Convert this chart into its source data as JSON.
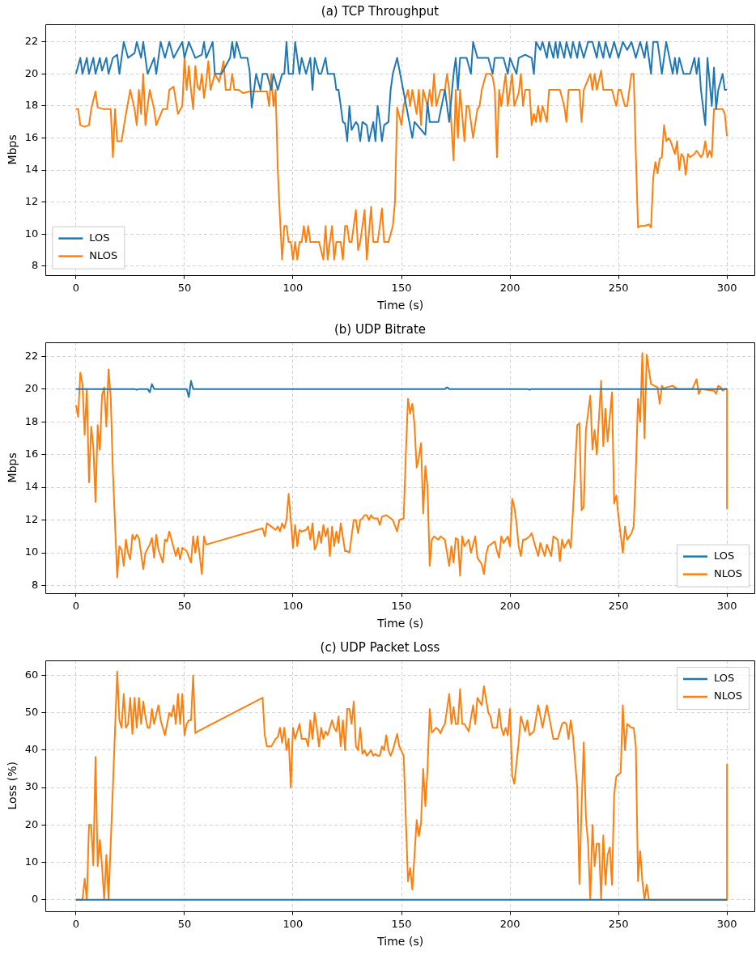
{
  "chart_data": [
    {
      "type": "line",
      "title": "(a) TCP Throughput",
      "xlabel": "Time (s)",
      "ylabel": "Mbps",
      "xlim": [
        -14,
        313
      ],
      "xticks": [
        0,
        50,
        100,
        150,
        200,
        250,
        300
      ],
      "ylim": [
        7.45,
        23.1
      ],
      "yticks": [
        8,
        10,
        12,
        14,
        16,
        18,
        20,
        22
      ],
      "grid": true,
      "legend": "bottom left",
      "series": [
        {
          "name": "LOS",
          "color": "#1f77b4",
          "x": [
            0,
            2,
            3,
            5,
            6,
            8,
            9,
            11,
            12,
            14,
            15,
            17,
            19,
            20,
            22,
            24,
            27,
            28,
            30,
            31,
            33,
            36,
            37,
            39,
            41,
            43,
            45,
            49,
            50,
            52,
            55,
            58,
            59,
            60,
            63,
            64,
            67,
            71,
            72,
            73,
            74,
            76,
            79,
            80,
            81,
            83,
            85,
            86,
            88,
            90,
            91,
            93,
            95,
            96,
            97,
            98,
            100,
            101,
            103,
            104,
            106,
            108,
            109,
            110,
            112,
            113,
            115,
            116,
            119,
            120,
            121,
            123,
            124,
            125,
            126,
            127,
            129,
            130,
            131,
            132,
            134,
            135,
            137,
            138,
            139,
            140,
            141,
            142,
            144,
            145,
            146,
            148,
            155,
            156,
            161,
            162,
            163,
            167,
            170,
            172,
            174,
            175,
            176,
            177,
            180,
            182,
            183,
            185,
            188,
            190,
            192,
            193,
            197,
            199,
            200,
            203,
            204,
            207,
            210,
            211,
            212,
            214,
            215,
            217,
            218,
            220,
            221,
            222,
            223,
            225,
            226,
            228,
            229,
            231,
            232,
            234,
            236,
            238,
            240,
            241,
            243,
            244,
            246,
            248,
            250,
            252,
            254,
            256,
            258,
            260,
            262,
            263,
            265,
            266,
            268,
            270,
            272,
            275,
            276,
            277,
            278,
            280,
            283,
            285,
            286,
            287,
            288,
            290,
            291,
            293,
            294,
            295,
            296,
            298,
            299,
            300
          ],
          "values": [
            20,
            21,
            20,
            21,
            20,
            21,
            20,
            21,
            20.2,
            21,
            20,
            21,
            21.2,
            20,
            22,
            21,
            21.3,
            22,
            21,
            22,
            20,
            21,
            20,
            22,
            21,
            22,
            21,
            22,
            21,
            22,
            21,
            21.2,
            22,
            21,
            22,
            20,
            20,
            21,
            22,
            21,
            22,
            21,
            21,
            20.2,
            17.9,
            20,
            19,
            20,
            20,
            19,
            20,
            19,
            20,
            20,
            22,
            20,
            20,
            22,
            20,
            21,
            20,
            21,
            19,
            21,
            20,
            20,
            21,
            20,
            20,
            19,
            19,
            17,
            16.9,
            15.8,
            18,
            16.5,
            17,
            16.8,
            15.8,
            17,
            16.8,
            15.8,
            17,
            15.8,
            18,
            17,
            15.8,
            16.8,
            17,
            19,
            20,
            21,
            16,
            17,
            16.2,
            18.2,
            17,
            17,
            19,
            17,
            20,
            21,
            19,
            21,
            21,
            20,
            22,
            21,
            21,
            21,
            20,
            21,
            21,
            20,
            21,
            20,
            21,
            21.2,
            21,
            20,
            22,
            21.5,
            22,
            21,
            22,
            21,
            22,
            21,
            22,
            21,
            22,
            21,
            22,
            21,
            22,
            21,
            22,
            22,
            21,
            22,
            21,
            22,
            21,
            22,
            21,
            22,
            21.5,
            22,
            21,
            22,
            21,
            22,
            20,
            22,
            22,
            20,
            22,
            20,
            21,
            20,
            21,
            20,
            20,
            21,
            20,
            21,
            19,
            16.8,
            21,
            18,
            20.4,
            17.8,
            19,
            20,
            19,
            19
          ]
        },
        {
          "name": "NLOS",
          "color": "#ff7f0e",
          "x": [
            0,
            1,
            2,
            4,
            6,
            7,
            9,
            10,
            13,
            16,
            17,
            18,
            19,
            21,
            23,
            25,
            27,
            28,
            29,
            30,
            31,
            32,
            33,
            34,
            36,
            37,
            40,
            42,
            43,
            45,
            47,
            49,
            50,
            51,
            52,
            53,
            54,
            55,
            56,
            57,
            58,
            59,
            60,
            61,
            62,
            64,
            66,
            68,
            69,
            71,
            72,
            73,
            75,
            77,
            80,
            84,
            88,
            89,
            90,
            91,
            92,
            93,
            94,
            95,
            96,
            97,
            98,
            99,
            100,
            101,
            102,
            103,
            104,
            105,
            106,
            107,
            108,
            110,
            112,
            114,
            115,
            116,
            117,
            118,
            119,
            120,
            122,
            123,
            124,
            125,
            126,
            127,
            129,
            130,
            131,
            133,
            134,
            136,
            137,
            139,
            140,
            141,
            142,
            144,
            146,
            147,
            148,
            150,
            151,
            153,
            154,
            155,
            157,
            158,
            159,
            160,
            162,
            163,
            164,
            165,
            166,
            168,
            170,
            171,
            172,
            174,
            175,
            176,
            177,
            179,
            180,
            181,
            183,
            185,
            186,
            187,
            189,
            191,
            192,
            193,
            194,
            195,
            196,
            198,
            199,
            200,
            201,
            202,
            204,
            205,
            206,
            207,
            209,
            210,
            211,
            212,
            213,
            214,
            215,
            217,
            218,
            220,
            223,
            225,
            226,
            227,
            230,
            232,
            233,
            234,
            237,
            238,
            239,
            240,
            242,
            243,
            245,
            247,
            249,
            250,
            251,
            253,
            254,
            256,
            257,
            258,
            259,
            260,
            262,
            264,
            265,
            266,
            267,
            268,
            269,
            270,
            271,
            272,
            273,
            274,
            276,
            277,
            278,
            279,
            280,
            281,
            282,
            283,
            285,
            286,
            288,
            289,
            290,
            291,
            292,
            293,
            294,
            296,
            298,
            299,
            300
          ],
          "values": [
            17.8,
            17.8,
            16.8,
            16.7,
            16.8,
            17.8,
            18.9,
            17.9,
            17.8,
            17.8,
            14.8,
            17.8,
            15.8,
            15.8,
            17.5,
            19,
            17.8,
            16.8,
            19,
            17.5,
            20,
            16.8,
            18,
            19,
            17.8,
            16.8,
            17.8,
            17.8,
            19,
            19.2,
            17.5,
            18,
            21,
            19,
            20.5,
            19,
            17.8,
            20.5,
            19.2,
            19,
            20,
            18.5,
            19.5,
            20.8,
            19,
            20,
            19.5,
            20.8,
            19,
            19,
            20,
            19,
            19,
            18.8,
            18.9,
            18.9,
            18.9,
            18,
            20,
            18,
            19,
            14,
            11,
            8.4,
            10.5,
            10.5,
            9.5,
            9.5,
            8.4,
            9.5,
            8.4,
            9.5,
            9.5,
            10.5,
            9.5,
            10.5,
            9.5,
            9.5,
            9.5,
            8.4,
            10.5,
            8.4,
            9.5,
            10.5,
            8.4,
            9.5,
            9.5,
            8.4,
            10.5,
            10.5,
            9.5,
            9.5,
            11.5,
            9,
            9.5,
            11.5,
            8.4,
            11.7,
            9.5,
            9.5,
            10.5,
            11.6,
            9.5,
            9.5,
            10.5,
            12,
            17.9,
            16.8,
            18,
            19,
            18,
            19,
            17.5,
            19,
            16.8,
            19,
            18,
            19,
            18,
            20,
            18,
            19,
            19,
            20,
            19,
            14.6,
            19,
            16,
            19,
            15.8,
            18,
            18,
            16,
            17.8,
            18,
            19,
            20,
            20,
            19.8,
            19,
            14.8,
            19,
            18,
            20,
            18,
            19,
            20,
            18,
            18.8,
            20,
            18,
            19,
            19,
            16.8,
            17.5,
            17,
            18,
            17,
            18,
            17,
            19,
            19,
            19,
            18,
            17,
            19,
            19,
            19,
            17,
            19,
            20,
            19,
            20,
            19,
            20.2,
            19,
            19,
            19,
            18,
            19,
            19,
            18,
            18,
            20,
            20,
            15,
            10.4,
            10.5,
            10.5,
            10.6,
            10.4,
            13.5,
            14.5,
            13.8,
            14.7,
            14.8,
            16.8,
            15.8,
            16,
            15.8,
            15,
            15.8,
            14,
            15,
            14.8,
            13.7,
            15,
            14.8,
            15,
            15.2,
            14.8,
            15,
            15.8,
            14.8,
            15.2,
            14.8,
            17.8,
            17.8,
            17.8,
            17.5,
            16.1
          ]
        }
      ]
    },
    {
      "type": "line",
      "title": "(b) UDP Bitrate",
      "xlabel": "Time (s)",
      "ylabel": "Mbps",
      "xlim": [
        -14,
        313
      ],
      "xticks": [
        0,
        50,
        100,
        150,
        200,
        250,
        300
      ],
      "ylim": [
        7.55,
        22.85
      ],
      "yticks": [
        8,
        10,
        12,
        14,
        16,
        18,
        20,
        22
      ],
      "grid": true,
      "legend": "bottom right",
      "series": [
        {
          "name": "LOS",
          "color": "#1f77b4",
          "x": [
            0,
            27,
            28,
            29,
            33,
            34,
            35,
            36,
            51,
            52,
            53,
            54,
            170,
            171,
            172,
            208,
            209,
            210,
            300
          ],
          "values": [
            20,
            20,
            19.95,
            20,
            20,
            19.8,
            20.3,
            20,
            20,
            19.5,
            20.5,
            20,
            20,
            20.1,
            20,
            20,
            19.95,
            20,
            20
          ]
        },
        {
          "name": "NLOS",
          "color": "#ff7f0e",
          "x": [
            0,
            1,
            2,
            3,
            4,
            5,
            6,
            7,
            8,
            9,
            10,
            11,
            12,
            13,
            14,
            15,
            16,
            17,
            19,
            20,
            21,
            22,
            23,
            24,
            25,
            26,
            27,
            28,
            29,
            31,
            32,
            34,
            35,
            36,
            37,
            38,
            40,
            41,
            42,
            43,
            44,
            46,
            47,
            48,
            49,
            51,
            53,
            54,
            55,
            56,
            58,
            59,
            60,
            86,
            87,
            88,
            90,
            92,
            93,
            94,
            95,
            96,
            97,
            98,
            99,
            100,
            101,
            102,
            103,
            104,
            106,
            107,
            108,
            109,
            110,
            111,
            112,
            113,
            114,
            115,
            116,
            117,
            118,
            119,
            120,
            121,
            122,
            124,
            125,
            126,
            127,
            128,
            129,
            130,
            131,
            132,
            133,
            134,
            135,
            136,
            137,
            139,
            140,
            141,
            143,
            146,
            148,
            149,
            151,
            152,
            153,
            154,
            155,
            156,
            157,
            158,
            159,
            160,
            161,
            162,
            163,
            164,
            165,
            167,
            168,
            170,
            172,
            173,
            174,
            175,
            176,
            177,
            178,
            179,
            181,
            182,
            184,
            185,
            187,
            188,
            189,
            190,
            193,
            194,
            195,
            196,
            197,
            198,
            199,
            200,
            201,
            202,
            203,
            204,
            205,
            206,
            207,
            209,
            210,
            211,
            213,
            214,
            216,
            217,
            219,
            220,
            222,
            223,
            224,
            225,
            227,
            228,
            229,
            231,
            232,
            233,
            234,
            235,
            237,
            238,
            239,
            240,
            242,
            243,
            244,
            245,
            247,
            248,
            249,
            250,
            252,
            253,
            254,
            256,
            257,
            258,
            259,
            260,
            261,
            262,
            263,
            265,
            268,
            269,
            270,
            271,
            272,
            275,
            277,
            284,
            286,
            287,
            288,
            294,
            295,
            296,
            297,
            298,
            299,
            300,
            300
          ],
          "values": [
            19,
            18.3,
            21,
            20.3,
            17.2,
            20,
            14.3,
            17.7,
            16.5,
            13.1,
            17.8,
            16.3,
            19.6,
            20.1,
            17.7,
            21.2,
            19.5,
            15,
            8.5,
            10.4,
            10.2,
            9.2,
            10.8,
            10,
            9.6,
            11.1,
            10.8,
            11.1,
            10.9,
            9,
            10,
            10.5,
            10.9,
            9.7,
            11.1,
            10.2,
            9.4,
            10.8,
            10.7,
            11.3,
            10.8,
            9.8,
            10.3,
            9.6,
            10.3,
            10.1,
            9.4,
            11,
            10,
            11,
            8.7,
            11,
            10.5,
            11.5,
            11,
            11.8,
            11.6,
            11.4,
            11.6,
            11.3,
            11.8,
            11.5,
            12,
            13.6,
            12,
            10.3,
            11.7,
            10.4,
            11.4,
            11.3,
            11.4,
            11.6,
            10.8,
            11.8,
            10.2,
            10.5,
            11.3,
            10.6,
            11.7,
            11,
            11.5,
            9.8,
            11.6,
            10.4,
            11.3,
            10.6,
            11.8,
            10.1,
            10.1,
            10,
            11,
            12,
            12,
            11.2,
            12,
            12.1,
            12.3,
            12.3,
            12,
            12.3,
            12.1,
            12.1,
            11.7,
            12.2,
            12.3,
            12,
            11.3,
            12,
            12.1,
            16,
            19.4,
            18.5,
            19.1,
            17.8,
            15.2,
            15.8,
            16.7,
            12.4,
            15.3,
            14,
            9.2,
            10.8,
            11,
            10.8,
            11,
            10.8,
            9.2,
            10.4,
            9.4,
            10.9,
            10.8,
            8.6,
            11,
            10.4,
            10.8,
            10,
            11,
            9.7,
            9.3,
            8.7,
            9.9,
            10.4,
            10.7,
            10.1,
            9.7,
            11,
            10.6,
            10.8,
            11,
            10.4,
            13.3,
            12.8,
            11.8,
            10.4,
            9.8,
            10.8,
            10.8,
            11,
            11.2,
            10.7,
            9.8,
            10.6,
            9.8,
            10.5,
            9.8,
            11,
            10.8,
            9.5,
            10.8,
            10.3,
            10.8,
            10.3,
            12.5,
            17.8,
            17.9,
            12.6,
            12.8,
            17.5,
            19.6,
            16.3,
            17.5,
            16,
            20.5,
            16.5,
            18.8,
            16.8,
            19.8,
            13,
            13.5,
            12.2,
            10,
            11.6,
            10.8,
            11.2,
            11.6,
            15,
            19.4,
            18,
            22.2,
            17,
            22.1,
            20.3,
            20.1,
            19.1,
            20.2,
            20,
            20.1,
            20.2,
            20,
            20,
            20.6,
            19.7,
            20,
            19.9,
            19.7,
            20.2,
            20.1,
            19.9,
            20,
            20,
            12.7
          ]
        }
      ]
    },
    {
      "type": "line",
      "title": "(c) UDP Packet Loss",
      "xlabel": "Time (s)",
      "ylabel": "Loss (%)",
      "xlim": [
        -14,
        313
      ],
      "xticks": [
        0,
        50,
        100,
        150,
        200,
        250,
        300
      ],
      "ylim": [
        -3,
        64
      ],
      "yticks": [
        0,
        10,
        20,
        30,
        40,
        50,
        60
      ],
      "grid": true,
      "legend": "top right",
      "series": [
        {
          "name": "LOS",
          "color": "#1f77b4",
          "x": [
            0,
            300
          ],
          "values": [
            0,
            0
          ]
        },
        {
          "name": "NLOS",
          "color": "#ff7f0e",
          "x": [
            0,
            3,
            4,
            5,
            6,
            7,
            8,
            9,
            10,
            11,
            12,
            13,
            14,
            15,
            17,
            19,
            20,
            21,
            22,
            23,
            24,
            25,
            26,
            27,
            28,
            29,
            30,
            31,
            32,
            33,
            34,
            35,
            36,
            38,
            39,
            41,
            42,
            43,
            44,
            45,
            46,
            47,
            48,
            49,
            50,
            51,
            52,
            53,
            54,
            55,
            56,
            86,
            87,
            88,
            90,
            92,
            93,
            94,
            95,
            96,
            97,
            98,
            99,
            100,
            101,
            102,
            103,
            104,
            106,
            107,
            108,
            109,
            110,
            111,
            112,
            113,
            114,
            115,
            116,
            117,
            118,
            119,
            120,
            121,
            122,
            123,
            124,
            125,
            126,
            127,
            128,
            129,
            130,
            131,
            132,
            133,
            134,
            136,
            137,
            138,
            139,
            140,
            141,
            142,
            143,
            144,
            145,
            146,
            148,
            149,
            151,
            153,
            154,
            155,
            157,
            158,
            159,
            160,
            161,
            162,
            163,
            164,
            166,
            167,
            168,
            169,
            170,
            172,
            173,
            174,
            175,
            176,
            177,
            178,
            179,
            181,
            183,
            184,
            185,
            187,
            188,
            190,
            191,
            192,
            194,
            195,
            196,
            197,
            198,
            199,
            200,
            201,
            202,
            204,
            205,
            207,
            208,
            209,
            211,
            213,
            215,
            217,
            219,
            220,
            222,
            224,
            225,
            226,
            227,
            228,
            229,
            231,
            232,
            233,
            234,
            235,
            236,
            237,
            238,
            239,
            240,
            241,
            242,
            243,
            244,
            245,
            246,
            247,
            248,
            249,
            251,
            252,
            253,
            254,
            256,
            257,
            258,
            259,
            260,
            261,
            262,
            263,
            264,
            300,
            300
          ],
          "values": [
            0,
            0,
            5.6,
            0,
            20,
            20,
            9.2,
            38.2,
            9,
            16,
            9,
            0,
            12,
            0,
            30,
            61,
            48,
            46,
            55,
            46,
            47,
            54,
            44.3,
            54,
            46,
            54,
            47,
            53,
            49,
            46,
            46,
            51,
            47,
            52,
            48,
            44,
            47,
            50,
            49,
            52,
            47,
            55,
            47,
            55,
            44,
            47,
            48,
            48,
            60,
            44.5,
            45,
            54,
            44,
            41,
            41,
            43,
            43.5,
            46,
            42,
            46,
            40,
            43,
            30,
            46,
            43,
            45,
            47,
            43,
            43,
            41,
            48,
            43,
            50,
            46,
            41,
            46,
            43,
            45,
            44,
            46,
            48,
            46,
            45,
            49,
            41,
            48,
            40,
            51,
            51,
            47,
            53,
            41,
            40,
            46,
            39,
            40,
            38.5,
            40,
            38.5,
            39,
            38.5,
            38.5,
            41,
            40,
            44,
            40,
            38.5,
            40,
            44.3,
            41,
            38.5,
            4.9,
            8.5,
            2.7,
            21.3,
            17,
            20.5,
            35,
            25,
            35,
            51,
            44.7,
            46,
            45.5,
            44.5,
            46,
            47,
            55,
            47,
            51.5,
            47,
            47,
            56.3,
            47,
            47,
            45,
            52,
            47,
            54,
            52,
            57.1,
            50,
            49,
            46,
            46,
            51,
            46,
            44,
            46,
            44,
            51,
            33.2,
            31,
            42,
            49,
            45,
            48,
            44,
            45,
            52,
            46,
            52,
            46,
            43,
            43,
            47,
            47.5,
            47,
            43,
            48,
            44,
            30,
            4.2,
            25,
            42.1,
            22,
            15,
            0,
            20,
            9,
            15,
            15,
            0,
            17.2,
            4,
            12,
            14,
            4,
            28,
            33,
            34,
            52,
            40,
            47,
            46,
            46,
            41,
            5,
            13,
            5,
            0,
            4,
            0,
            0,
            36.3
          ]
        }
      ]
    }
  ]
}
